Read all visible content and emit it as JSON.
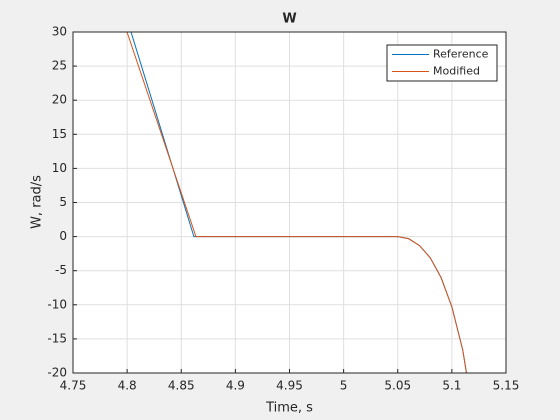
{
  "chart_data": {
    "type": "line",
    "title": "W",
    "x_label": "Time, s",
    "y_label": "W, rad/s",
    "series": [
      {
        "name": "Reference",
        "color": "#0072bd",
        "x": [
          4.8036,
          4.8617,
          5.05,
          5.06,
          5.07,
          5.08,
          5.09,
          5.1,
          5.11,
          5.1135
        ],
        "values": [
          30,
          0,
          0,
          -0.3,
          -1.3,
          -3.1,
          -6,
          -10.3,
          -16.6,
          -20
        ]
      },
      {
        "name": "Modified",
        "color": "#d95319",
        "x": [
          4.7999,
          4.8636,
          5.05,
          5.06,
          5.07,
          5.08,
          5.09,
          5.1,
          5.11,
          5.1135
        ],
        "values": [
          30,
          0,
          0,
          -0.3,
          -1.3,
          -3.1,
          -6,
          -10.3,
          -16.6,
          -20
        ]
      }
    ],
    "xlim": [
      4.75,
      5.15
    ],
    "xticks": [
      4.75,
      4.8,
      4.85,
      4.9,
      4.95,
      5,
      5.05,
      5.1,
      5.15
    ],
    "ylim": [
      -20,
      30
    ],
    "yticks": [
      -20,
      -15,
      -10,
      -5,
      0,
      5,
      10,
      15,
      20,
      25,
      30
    ],
    "grid": true,
    "legend": "northeast"
  }
}
